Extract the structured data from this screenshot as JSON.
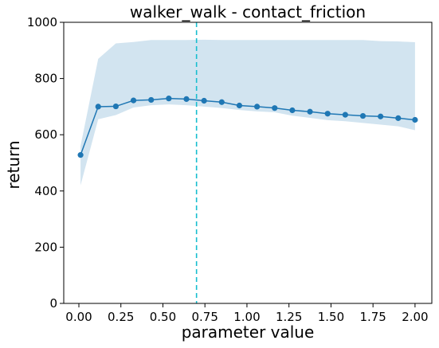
{
  "chart_data": {
    "type": "line",
    "title": "walker_walk - contact_friction",
    "xlabel": "parameter value",
    "ylabel": "return",
    "xlim": [
      -0.09,
      2.1
    ],
    "ylim": [
      0,
      1000
    ],
    "x_ticks": [
      0.0,
      0.25,
      0.5,
      0.75,
      1.0,
      1.25,
      1.5,
      1.75,
      2.0
    ],
    "x_tick_labels": [
      "0.00",
      "0.25",
      "0.50",
      "0.75",
      "1.00",
      "1.25",
      "1.50",
      "1.75",
      "2.00"
    ],
    "y_ticks": [
      0,
      200,
      400,
      600,
      800,
      1000
    ],
    "y_tick_labels": [
      "0",
      "200",
      "400",
      "600",
      "800",
      "1000"
    ],
    "grid": false,
    "series": [
      {
        "x": [
          0.01,
          0.115,
          0.22,
          0.325,
          0.43,
          0.535,
          0.64,
          0.745,
          0.85,
          0.955,
          1.06,
          1.165,
          1.27,
          1.375,
          1.48,
          1.585,
          1.69,
          1.795,
          1.9,
          2.0
        ],
        "values": [
          528,
          700,
          701,
          722,
          724,
          729,
          727,
          721,
          716,
          704,
          700,
          695,
          687,
          682,
          675,
          671,
          667,
          665,
          659,
          653
        ],
        "band_lower": [
          420,
          655,
          670,
          697,
          705,
          708,
          705,
          700,
          695,
          688,
          683,
          680,
          668,
          660,
          652,
          648,
          642,
          636,
          630,
          616
        ],
        "band_upper": [
          560,
          870,
          925,
          930,
          937,
          937,
          937,
          938,
          937,
          937,
          937,
          937,
          937,
          937,
          937,
          937,
          937,
          933,
          932,
          929
        ],
        "color": "#1f77b4",
        "band_color": "#1f77b4"
      }
    ],
    "vline": {
      "x": 0.7,
      "color": "#17becf",
      "style": "dashed"
    }
  }
}
